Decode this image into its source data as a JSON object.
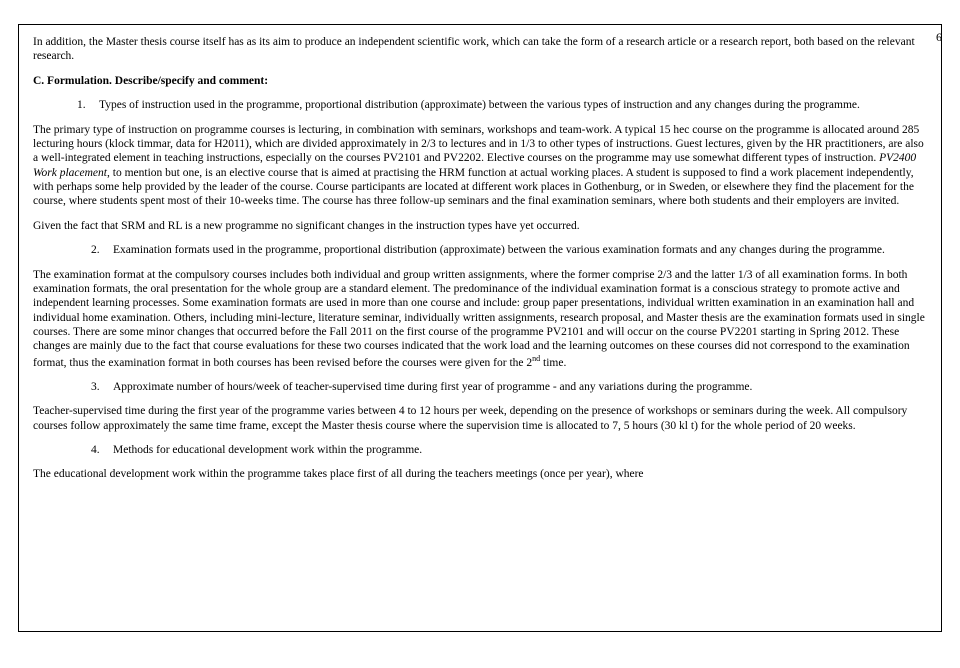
{
  "pageNumber": "6",
  "intro": "In addition, the Master thesis course itself has as its aim to produce an independent scientific work, which can take the form of a research article or a research report, both based on the relevant research.",
  "sectionHeader": "C. Formulation. Describe/specify and comment:",
  "item1num": "1.",
  "item1text": "Types of instruction used in the programme, proportional distribution (approximate) between the various types of instruction and any changes during the programme.",
  "para1": "The primary type of instruction on programme courses is lecturing, in combination with seminars, workshops and team-work. A typical 15 hec course on the programme is allocated around 285 lecturing hours (klock timmar, data for H2011), which are divided approximately in 2/3 to lectures and in 1/3 to other types of instructions. Guest lectures, given by the HR practitioners, are also a well-integrated element in teaching instructions, especially on the courses PV2101 and PV2202. Elective courses on the programme may use somewhat different types of instruction. ",
  "para1italic": "PV2400 Work placement",
  "para1cont": ", to mention but one, is an elective course that is aimed at practising the HRM function at actual working places. A student is supposed to find a work placement independently, with perhaps some help provided by the leader of the course. Course participants are located at different work places in Gothenburg, or in Sweden, or elsewhere they find the placement for the course, where students spent most of their 10-weeks time. The course has three follow-up seminars and the final examination seminars, where both students and their employers are invited.",
  "para2": "Given the fact that SRM and RL is a new programme no significant changes in the instruction types have yet occurred.",
  "item2num": "2.",
  "item2text": "Examination formats used in the programme, proportional distribution (approximate) between the various examination formats and any changes during the programme.",
  "para3a": "The examination format at the compulsory courses includes both individual and group written assignments, where the former comprise 2/3 and the latter 1/3 of all examination forms. In both examination formats, the oral presentation for the whole group are a standard element. The predominance of the individual examination format is a conscious strategy to promote active and independent learning processes. Some examination formats are used in more than one course and include: group paper presentations, individual written examination in an examination hall and individual home examination. Others, including mini-lecture, literature seminar, individually written assignments, research proposal, and Master thesis are the examination formats used in single courses. There are some minor changes that occurred before the Fall 2011 on the first course of the programme PV2101 and will occur on the course PV2201 starting in Spring 2012. These changes are mainly due to the fact that course evaluations for these two courses indicated that the work load and the learning outcomes on these courses did not correspond to the examination format, thus the examination format in both courses has been revised before the courses were given for the 2",
  "para3sup": "nd",
  "para3b": " time.",
  "item3num": "3.",
  "item3text": "Approximate number of hours/week of teacher-supervised time during first year of programme - and any variations during the programme.",
  "para4": "Teacher-supervised time during the first year of the programme varies between 4 to 12 hours per week, depending on the presence of workshops or seminars during the week. All compulsory courses follow approximately the same time frame, except the Master thesis course where the supervision time is allocated to 7, 5 hours (30 kl t) for the whole period of 20 weeks.",
  "item4num": "4.",
  "item4text": "Methods for educational development work within the programme.",
  "para5": "The educational development work within the programme takes place first of all during the teachers meetings (once per year), where"
}
